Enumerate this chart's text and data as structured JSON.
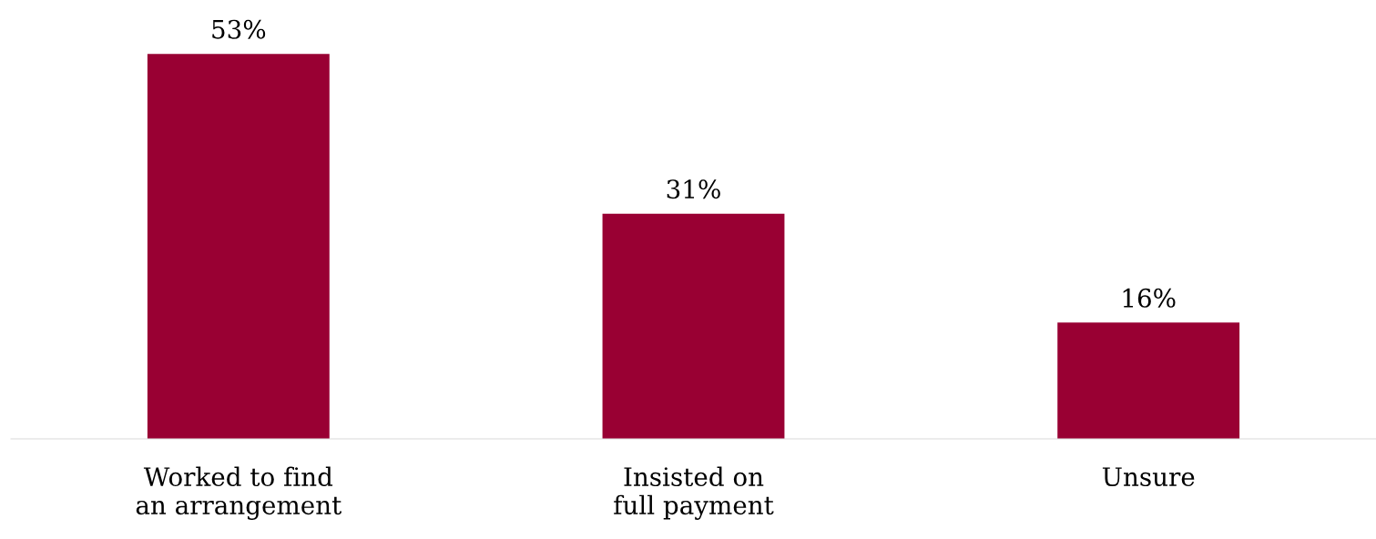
{
  "chart_data": {
    "type": "bar",
    "categories": [
      "Worked to find\nan arrangement",
      "Insisted on\nfull payment",
      "Unsure"
    ],
    "values": [
      53,
      31,
      16
    ],
    "value_labels": [
      "53%",
      "31%",
      "16%"
    ],
    "color": "#990033",
    "grid": false
  }
}
